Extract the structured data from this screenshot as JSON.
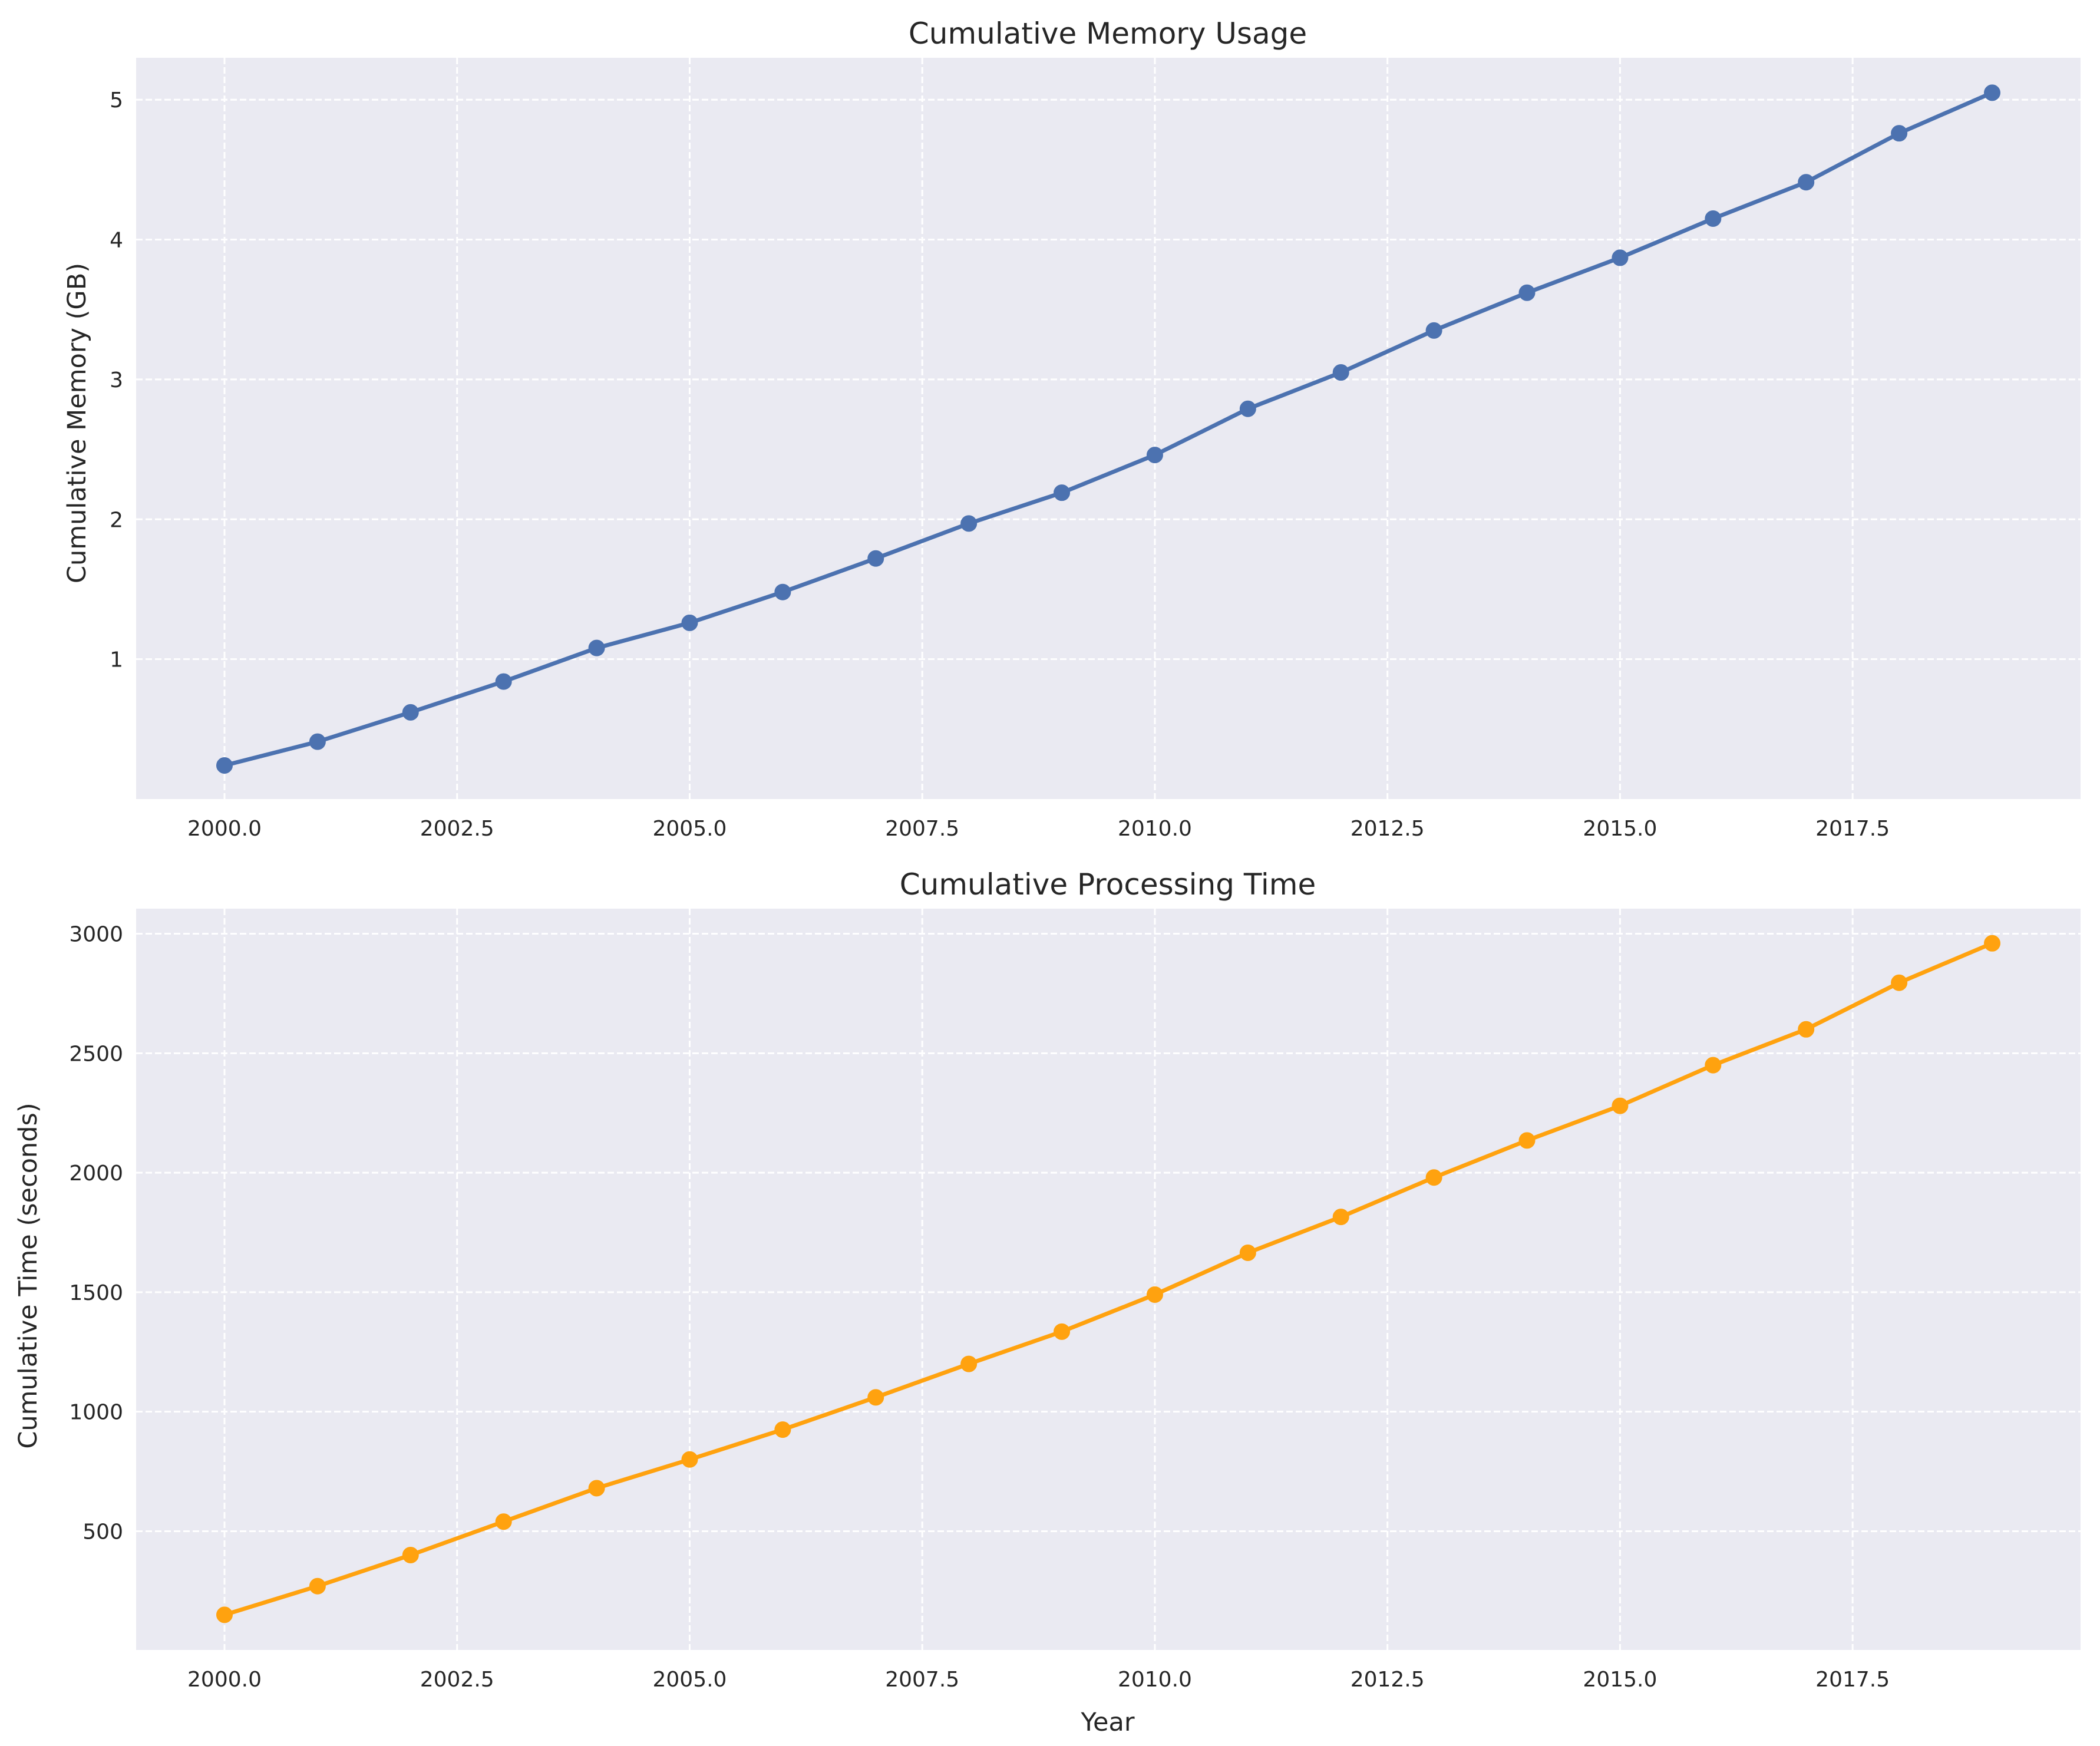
{
  "chart_data": [
    {
      "type": "line",
      "title": "Cumulative Memory Usage",
      "xlabel": "",
      "ylabel": "Cumulative Memory (GB)",
      "x": [
        2000,
        2001,
        2002,
        2003,
        2004,
        2005,
        2006,
        2007,
        2008,
        2009,
        2010,
        2011,
        2012,
        2013,
        2014,
        2015,
        2016,
        2017,
        2018,
        2019
      ],
      "series": [
        {
          "color": "#4c72b0",
          "marker": "circle",
          "values": [
            0.24,
            0.41,
            0.62,
            0.84,
            1.08,
            1.26,
            1.48,
            1.72,
            1.97,
            2.19,
            2.46,
            2.79,
            3.05,
            3.35,
            3.62,
            3.87,
            4.15,
            4.41,
            4.76,
            5.05
          ]
        }
      ],
      "xlim": [
        1999.05,
        2019.95
      ],
      "ylim": [
        0.0,
        5.3
      ],
      "xticks": [
        2000.0,
        2002.5,
        2005.0,
        2007.5,
        2010.0,
        2012.5,
        2015.0,
        2017.5
      ],
      "xtick_labels": [
        "2000.0",
        "2002.5",
        "2005.0",
        "2007.5",
        "2010.0",
        "2012.5",
        "2015.0",
        "2017.5"
      ],
      "yticks": [
        1,
        2,
        3,
        4,
        5
      ],
      "ytick_labels": [
        "1",
        "2",
        "3",
        "4",
        "5"
      ],
      "grid": true,
      "background": "#eaeaf2",
      "grid_color": "#ffffff"
    },
    {
      "type": "line",
      "title": "Cumulative Processing Time",
      "xlabel": "Year",
      "ylabel": "Cumulative Time (seconds)",
      "x": [
        2000,
        2001,
        2002,
        2003,
        2004,
        2005,
        2006,
        2007,
        2008,
        2009,
        2010,
        2011,
        2012,
        2013,
        2014,
        2015,
        2016,
        2017,
        2018,
        2019
      ],
      "series": [
        {
          "color": "#ffa20f",
          "marker": "circle",
          "values": [
            150,
            270,
            400,
            540,
            680,
            800,
            925,
            1060,
            1200,
            1335,
            1490,
            1665,
            1815,
            1980,
            2135,
            2280,
            2450,
            2600,
            2795,
            2960
          ]
        }
      ],
      "xlim": [
        1999.05,
        2019.95
      ],
      "ylim": [
        3,
        3105
      ],
      "xticks": [
        2000.0,
        2002.5,
        2005.0,
        2007.5,
        2010.0,
        2012.5,
        2015.0,
        2017.5
      ],
      "xtick_labels": [
        "2000.0",
        "2002.5",
        "2005.0",
        "2007.5",
        "2010.0",
        "2012.5",
        "2015.0",
        "2017.5"
      ],
      "yticks": [
        500,
        1000,
        1500,
        2000,
        2500,
        3000
      ],
      "ytick_labels": [
        "500",
        "1000",
        "1500",
        "2000",
        "2500",
        "3000"
      ],
      "grid": true,
      "background": "#eaeaf2",
      "grid_color": "#ffffff"
    }
  ]
}
